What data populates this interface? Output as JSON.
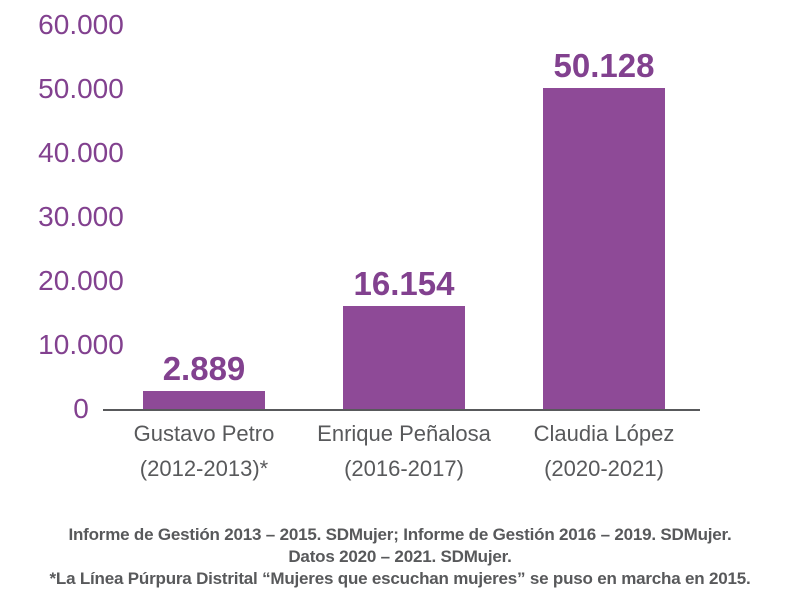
{
  "colors": {
    "bar": "#8E4A97",
    "purple_text": "#82418F",
    "gray_text": "#58595B",
    "axis_line": "#58595B",
    "background": "#FFFFFF"
  },
  "chart_data": {
    "type": "bar",
    "title": "",
    "xlabel": "",
    "ylabel": "",
    "categories": [
      "Gustavo Petro",
      "Enrique Peñalosa",
      "Claudia López"
    ],
    "category_sublabels": [
      "(2012-2013)*",
      "(2016-2017)",
      "(2020-2021)"
    ],
    "values": [
      2889,
      16154,
      50128
    ],
    "value_labels": [
      "2.889",
      "16.154",
      "50.128"
    ],
    "ylim": [
      0,
      60000
    ],
    "y_tick_values": [
      60000,
      50000,
      40000,
      30000,
      20000,
      10000,
      0
    ],
    "y_tick_labels": [
      "60.000",
      "50.000",
      "40.000",
      "30.000",
      "20.000",
      "10.000",
      "0"
    ],
    "grid": false,
    "legend": false,
    "bar_color": "#8E4A97"
  },
  "footer": {
    "line1": "Informe de Gestión 2013 – 2015. SDMujer; Informe de Gestión 2016 – 2019. SDMujer.",
    "line2": "Datos 2020 – 2021. SDMujer.",
    "line3": "*La Línea Púrpura Distrital “Mujeres que escuchan mujeres” se puso en marcha en 2015."
  }
}
